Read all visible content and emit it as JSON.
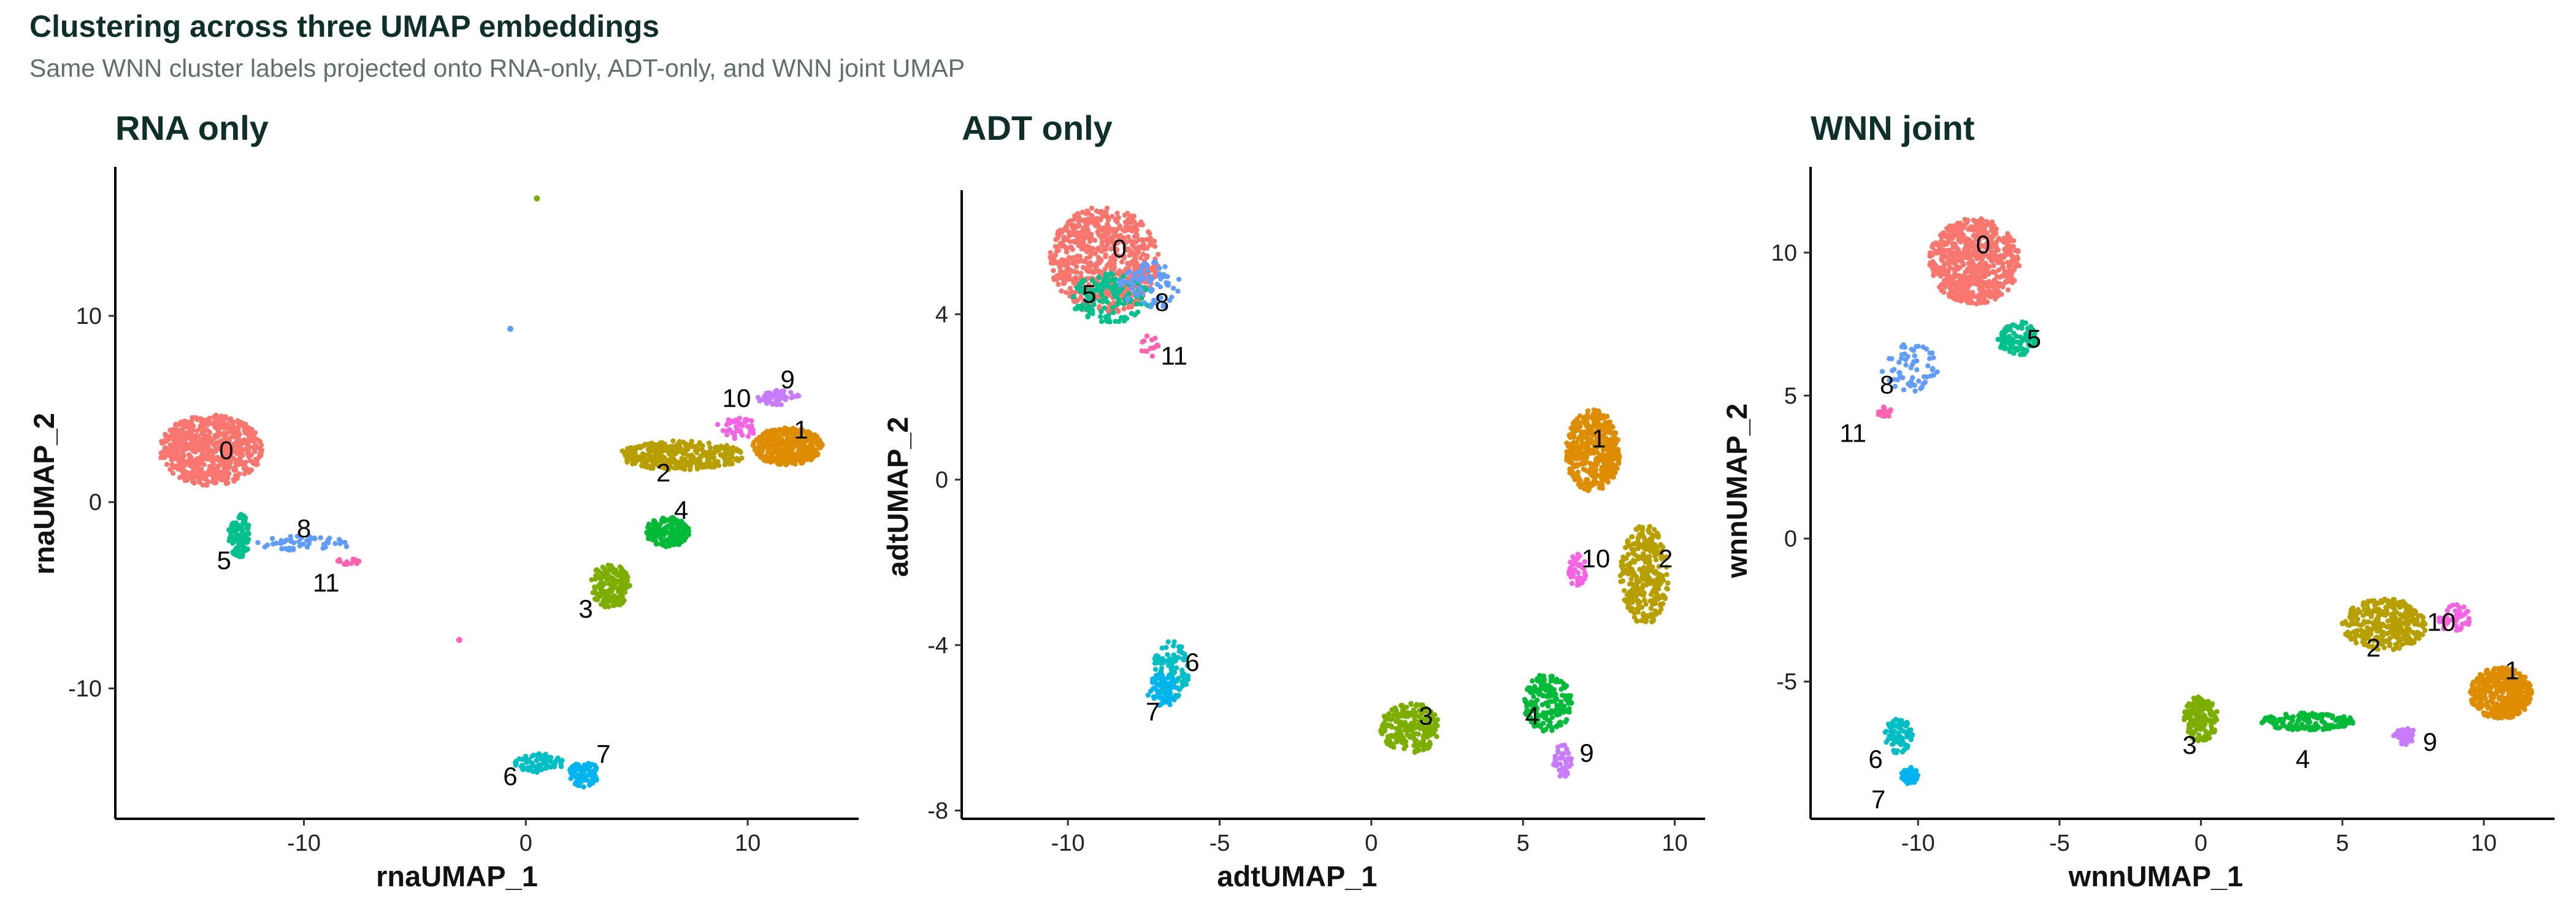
{
  "figure": {
    "title": "Clustering across three UMAP embeddings",
    "subtitle": "Same WNN cluster labels projected onto RNA-only, ADT-only, and WNN joint UMAP"
  },
  "cluster_colors": {
    "0": "#F8766D",
    "1": "#DE8C00",
    "2": "#B79F00",
    "3": "#7CAE00",
    "4": "#00BA38",
    "5": "#00C08B",
    "6": "#00BFC4",
    "7": "#00B4F0",
    "8": "#619CFF",
    "9": "#C77CFF",
    "10": "#F564E3",
    "11": "#FF64B0"
  },
  "chart_data": [
    {
      "type": "scatter",
      "title": "RNA only",
      "xlabel": "rnaUMAP_1",
      "ylabel": "rnaUMAP_2",
      "xlim": [
        -18.5,
        15
      ],
      "ylim": [
        -17,
        18
      ],
      "xticks": [
        -10,
        0,
        10
      ],
      "yticks": [
        -10,
        0,
        10
      ],
      "clusters": [
        {
          "label": "0",
          "center": [
            -14.2,
            2.8
          ],
          "spread": [
            2.3,
            1.9
          ],
          "n": 650
        },
        {
          "label": "1",
          "center": [
            11.8,
            3.0
          ],
          "spread": [
            1.6,
            1.0
          ],
          "n": 420
        },
        {
          "label": "2",
          "center": [
            7.0,
            2.5
          ],
          "spread": [
            2.8,
            0.8
          ],
          "n": 330
        },
        {
          "label": "3",
          "center": [
            3.8,
            -4.5
          ],
          "spread": [
            0.9,
            1.2
          ],
          "n": 170
        },
        {
          "label": "4",
          "center": [
            6.4,
            -1.6
          ],
          "spread": [
            1.0,
            0.8
          ],
          "n": 170
        },
        {
          "label": "5",
          "center": [
            -12.9,
            -1.8
          ],
          "spread": [
            0.5,
            1.2
          ],
          "n": 90
        },
        {
          "label": "6",
          "center": [
            0.6,
            -14.0
          ],
          "spread": [
            1.1,
            0.5
          ],
          "n": 80
        },
        {
          "label": "7",
          "center": [
            2.6,
            -14.6
          ],
          "spread": [
            0.7,
            0.7
          ],
          "n": 80
        },
        {
          "label": "8",
          "center": [
            -10.0,
            -2.2
          ],
          "spread": [
            2.2,
            0.4
          ],
          "n": 50
        },
        {
          "label": "9",
          "center": [
            11.4,
            5.6
          ],
          "spread": [
            1.0,
            0.4
          ],
          "n": 50
        },
        {
          "label": "10",
          "center": [
            9.5,
            4.0
          ],
          "spread": [
            0.9,
            0.6
          ],
          "n": 40
        },
        {
          "label": "11",
          "center": [
            -8.0,
            -3.2
          ],
          "spread": [
            0.6,
            0.2
          ],
          "n": 15
        }
      ],
      "outliers": [
        {
          "label": "3",
          "x": 0.5,
          "y": 16.3
        },
        {
          "label": "8",
          "x": -0.7,
          "y": 9.3
        },
        {
          "label": "11",
          "x": -3.0,
          "y": -7.4
        }
      ],
      "cluster_labels": [
        {
          "text": "0",
          "x": -13.5,
          "y": 2.8
        },
        {
          "text": "1",
          "x": 12.4,
          "y": 3.9
        },
        {
          "text": "2",
          "x": 6.2,
          "y": 1.6
        },
        {
          "text": "3",
          "x": 2.7,
          "y": -5.7
        },
        {
          "text": "4",
          "x": 7.0,
          "y": -0.4
        },
        {
          "text": "5",
          "x": -13.6,
          "y": -3.1
        },
        {
          "text": "6",
          "x": -0.7,
          "y": -14.7
        },
        {
          "text": "7",
          "x": 3.5,
          "y": -13.5
        },
        {
          "text": "8",
          "x": -10.0,
          "y": -1.4
        },
        {
          "text": "9",
          "x": 11.8,
          "y": 6.6
        },
        {
          "text": "10",
          "x": 9.5,
          "y": 5.6
        },
        {
          "text": "11",
          "x": -9.0,
          "y": -4.3
        }
      ]
    },
    {
      "type": "scatter",
      "title": "ADT only",
      "xlabel": "adtUMAP_1",
      "ylabel": "adtUMAP_2",
      "xlim": [
        -13.5,
        11
      ],
      "ylim": [
        -8.2,
        7
      ],
      "xticks": [
        -10,
        -5,
        0,
        5,
        10
      ],
      "yticks": [
        -8,
        -4,
        0,
        4
      ],
      "clusters": [
        {
          "label": "0",
          "center": [
            -8.8,
            5.3
          ],
          "spread": [
            1.8,
            1.3
          ],
          "n": 700
        },
        {
          "label": "1",
          "center": [
            7.3,
            0.7
          ],
          "spread": [
            0.9,
            1.0
          ],
          "n": 420
        },
        {
          "label": "2",
          "center": [
            9.0,
            -2.3
          ],
          "spread": [
            0.8,
            1.2
          ],
          "n": 300
        },
        {
          "label": "3",
          "center": [
            1.3,
            -6.0
          ],
          "spread": [
            1.0,
            0.6
          ],
          "n": 220
        },
        {
          "label": "4",
          "center": [
            5.8,
            -5.4
          ],
          "spread": [
            0.8,
            0.7
          ],
          "n": 180
        },
        {
          "label": "5",
          "center": [
            -8.6,
            4.4
          ],
          "spread": [
            1.3,
            0.6
          ],
          "n": 130
        },
        {
          "label": "6",
          "center": [
            -6.6,
            -4.6
          ],
          "spread": [
            0.6,
            0.7
          ],
          "n": 110
        },
        {
          "label": "7",
          "center": [
            -6.9,
            -5.1
          ],
          "spread": [
            0.5,
            0.4
          ],
          "n": 60
        },
        {
          "label": "8",
          "center": [
            -7.3,
            4.7
          ],
          "spread": [
            1.0,
            0.6
          ],
          "n": 70
        },
        {
          "label": "9",
          "center": [
            6.3,
            -6.8
          ],
          "spread": [
            0.3,
            0.4
          ],
          "n": 45
        },
        {
          "label": "10",
          "center": [
            6.8,
            -2.2
          ],
          "spread": [
            0.3,
            0.4
          ],
          "n": 40
        },
        {
          "label": "11",
          "center": [
            -7.3,
            3.2
          ],
          "spread": [
            0.3,
            0.3
          ],
          "n": 15
        }
      ],
      "outliers": [],
      "cluster_labels": [
        {
          "text": "0",
          "x": -8.3,
          "y": 5.6
        },
        {
          "text": "1",
          "x": 7.5,
          "y": 1.0
        },
        {
          "text": "2",
          "x": 9.7,
          "y": -1.9
        },
        {
          "text": "3",
          "x": 1.8,
          "y": -5.7
        },
        {
          "text": "4",
          "x": 5.3,
          "y": -5.7
        },
        {
          "text": "5",
          "x": -9.3,
          "y": 4.5
        },
        {
          "text": "6",
          "x": -5.9,
          "y": -4.4
        },
        {
          "text": "7",
          "x": -7.2,
          "y": -5.6
        },
        {
          "text": "8",
          "x": -6.9,
          "y": 4.3
        },
        {
          "text": "9",
          "x": 7.1,
          "y": -6.6
        },
        {
          "text": "10",
          "x": 7.4,
          "y": -1.9
        },
        {
          "text": "11",
          "x": -6.5,
          "y": 3.0
        }
      ]
    },
    {
      "type": "scatter",
      "title": "WNN joint",
      "xlabel": "wnnUMAP_1",
      "ylabel": "wnnUMAP_2",
      "xlim": [
        -13.8,
        12.5
      ],
      "ylim": [
        -9.8,
        13
      ],
      "xticks": [
        -10,
        -5,
        0,
        5,
        10
      ],
      "yticks": [
        -5,
        0,
        5,
        10
      ],
      "clusters": [
        {
          "label": "0",
          "center": [
            -8.0,
            9.7
          ],
          "spread": [
            1.6,
            1.5
          ],
          "n": 650
        },
        {
          "label": "1",
          "center": [
            10.6,
            -5.4
          ],
          "spread": [
            1.1,
            0.9
          ],
          "n": 400
        },
        {
          "label": "2",
          "center": [
            6.5,
            -3.0
          ],
          "spread": [
            1.5,
            0.9
          ],
          "n": 330
        },
        {
          "label": "3",
          "center": [
            0.0,
            -6.3
          ],
          "spread": [
            0.6,
            0.8
          ],
          "n": 170
        },
        {
          "label": "4",
          "center": [
            3.8,
            -6.4
          ],
          "spread": [
            1.7,
            0.3
          ],
          "n": 160
        },
        {
          "label": "5",
          "center": [
            -6.5,
            7.0
          ],
          "spread": [
            0.7,
            0.6
          ],
          "n": 110
        },
        {
          "label": "6",
          "center": [
            -10.7,
            -6.9
          ],
          "spread": [
            0.5,
            0.6
          ],
          "n": 80
        },
        {
          "label": "7",
          "center": [
            -10.3,
            -8.3
          ],
          "spread": [
            0.3,
            0.3
          ],
          "n": 60
        },
        {
          "label": "8",
          "center": [
            -10.3,
            6.0
          ],
          "spread": [
            1.0,
            0.9
          ],
          "n": 60
        },
        {
          "label": "9",
          "center": [
            7.2,
            -6.9
          ],
          "spread": [
            0.4,
            0.3
          ],
          "n": 45
        },
        {
          "label": "10",
          "center": [
            9.0,
            -2.8
          ],
          "spread": [
            0.6,
            0.5
          ],
          "n": 45
        },
        {
          "label": "11",
          "center": [
            -11.2,
            4.4
          ],
          "spread": [
            0.3,
            0.2
          ],
          "n": 15
        }
      ],
      "outliers": [],
      "cluster_labels": [
        {
          "text": "0",
          "x": -7.7,
          "y": 10.3
        },
        {
          "text": "1",
          "x": 11.0,
          "y": -4.6
        },
        {
          "text": "2",
          "x": 6.1,
          "y": -3.8
        },
        {
          "text": "3",
          "x": -0.4,
          "y": -7.2
        },
        {
          "text": "4",
          "x": 3.6,
          "y": -7.7
        },
        {
          "text": "5",
          "x": -5.9,
          "y": 7.0
        },
        {
          "text": "6",
          "x": -11.5,
          "y": -7.7
        },
        {
          "text": "7",
          "x": -11.4,
          "y": -9.1
        },
        {
          "text": "8",
          "x": -11.1,
          "y": 5.4
        },
        {
          "text": "9",
          "x": 8.1,
          "y": -7.1
        },
        {
          "text": "10",
          "x": 8.5,
          "y": -2.9
        },
        {
          "text": "11",
          "x": -12.3,
          "y": 3.7
        }
      ]
    }
  ]
}
